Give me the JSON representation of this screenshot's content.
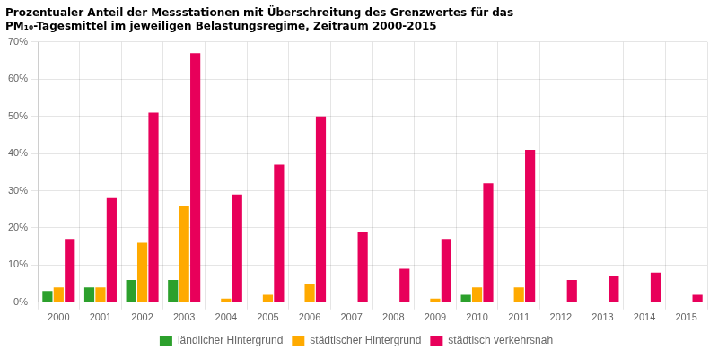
{
  "chart_data": {
    "type": "bar",
    "title": [
      "Prozentualer Anteil der Messstationen mit Überschreitung des Grenzwertes für das",
      "PM₁₀-Tagesmittel im jeweiligen Belastungsregime, Zeitraum 2000-2015"
    ],
    "categories": [
      "2000",
      "2001",
      "2002",
      "2003",
      "2004",
      "2005",
      "2006",
      "2007",
      "2008",
      "2009",
      "2010",
      "2011",
      "2012",
      "2013",
      "2014",
      "2015"
    ],
    "series": [
      {
        "name": "ländlicher Hintergrund",
        "color": "#2ca02c",
        "values": [
          3,
          4,
          6,
          6,
          0,
          0,
          0,
          0,
          0,
          0,
          2,
          0,
          0,
          0,
          0,
          0
        ]
      },
      {
        "name": "städtischer Hintergrund",
        "color": "#ffaa00",
        "values": [
          4,
          4,
          16,
          26,
          1,
          2,
          5,
          0,
          0,
          1,
          4,
          4,
          0,
          0,
          0,
          0
        ]
      },
      {
        "name": "städtisch verkehrsnah",
        "color": "#e8005a",
        "values": [
          17,
          28,
          51,
          67,
          29,
          37,
          50,
          19,
          9,
          17,
          32,
          41,
          6,
          7,
          8,
          2
        ]
      }
    ],
    "ylim": [
      0,
      70
    ],
    "yticks": [
      {
        "value": 0,
        "label": "0%"
      },
      {
        "value": 10,
        "label": "10%"
      },
      {
        "value": 20,
        "label": "20%"
      },
      {
        "value": 30,
        "label": "30%"
      },
      {
        "value": 40,
        "label": "40%"
      },
      {
        "value": 50,
        "label": "50%"
      },
      {
        "value": 60,
        "label": "60%"
      },
      {
        "value": 70,
        "label": "70%"
      }
    ],
    "grid": true,
    "legend": "bottom"
  }
}
